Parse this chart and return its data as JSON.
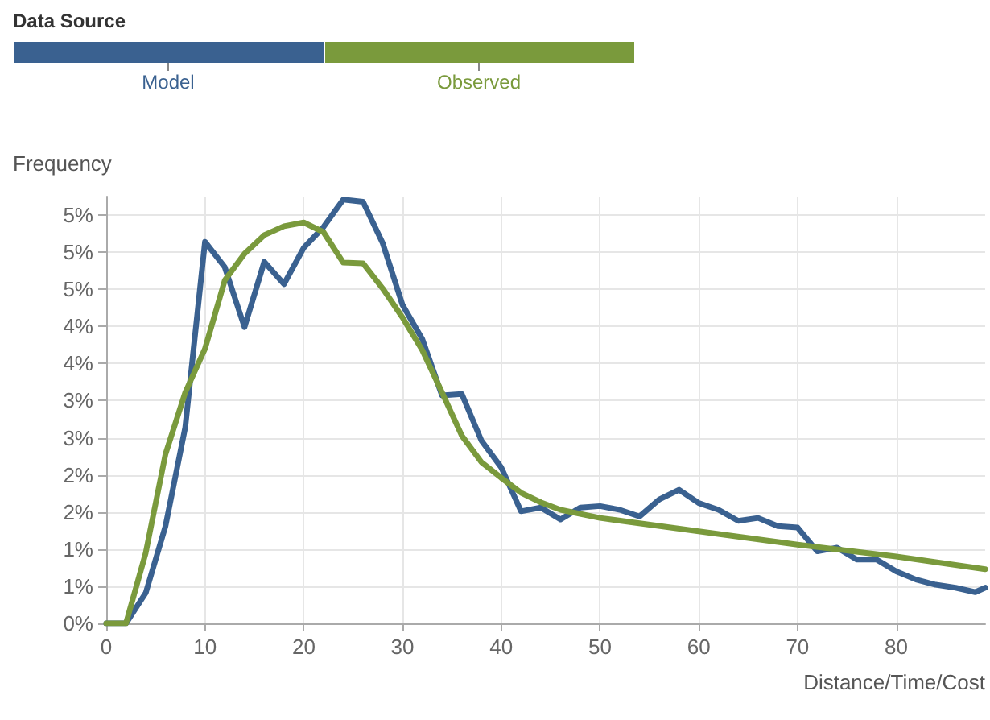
{
  "chart_data": {
    "type": "line",
    "legend_title": "Data Source",
    "xlabel": "Distance/Time/Cost",
    "ylabel": "Frequency",
    "xlim": [
      0,
      89
    ],
    "xticks": [
      0,
      10,
      20,
      30,
      40,
      50,
      60,
      70,
      80
    ],
    "ylim": [
      0,
      5.75
    ],
    "yticks": [
      {
        "value": 0,
        "label": "0%"
      },
      {
        "value": 0.5,
        "label": "1%"
      },
      {
        "value": 1,
        "label": "1%"
      },
      {
        "value": 1.5,
        "label": "2%"
      },
      {
        "value": 2,
        "label": "2%"
      },
      {
        "value": 2.5,
        "label": "3%"
      },
      {
        "value": 3,
        "label": "3%"
      },
      {
        "value": 3.5,
        "label": "4%"
      },
      {
        "value": 4,
        "label": "4%"
      },
      {
        "value": 4.5,
        "label": "5%"
      },
      {
        "value": 5,
        "label": "5%"
      },
      {
        "value": 5.5,
        "label": "5%"
      }
    ],
    "grid": true,
    "legend": "top left",
    "marker": "none",
    "line_style": "solid",
    "series": [
      {
        "name": "Model",
        "color": "#3a6190",
        "x": [
          0,
          2,
          4,
          6,
          8,
          10,
          12,
          14,
          16,
          18,
          20,
          22,
          24,
          26,
          28,
          30,
          32,
          34,
          36,
          38,
          40,
          42,
          44,
          46,
          48,
          50,
          52,
          54,
          56,
          58,
          60,
          62,
          64,
          66,
          68,
          70,
          72,
          74,
          76,
          78,
          80,
          82,
          84,
          86,
          88,
          89
        ],
        "values": [
          0,
          0,
          0.41,
          1.31,
          2.64,
          5.14,
          4.8,
          3.99,
          4.87,
          4.57,
          5.06,
          5.34,
          5.71,
          5.68,
          5.12,
          4.29,
          3.83,
          3.07,
          3.09,
          2.46,
          2.1,
          1.51,
          1.56,
          1.4,
          1.56,
          1.58,
          1.53,
          1.44,
          1.67,
          1.8,
          1.62,
          1.53,
          1.38,
          1.42,
          1.31,
          1.29,
          0.97,
          1.02,
          0.86,
          0.86,
          0.7,
          0.59,
          0.52,
          0.48,
          0.42,
          0.48
        ]
      },
      {
        "name": "Observed",
        "color": "#7a9a3c",
        "x": [
          0,
          2,
          4,
          6,
          8,
          10,
          12,
          14,
          16,
          18,
          20,
          22,
          24,
          26,
          28,
          30,
          32,
          34,
          36,
          38,
          40,
          42,
          44,
          46,
          50,
          60,
          70,
          80,
          89
        ],
        "values": [
          0,
          0,
          0.95,
          2.28,
          3.11,
          3.7,
          4.62,
          4.98,
          5.23,
          5.35,
          5.4,
          5.27,
          4.86,
          4.85,
          4.51,
          4.12,
          3.68,
          3.11,
          2.53,
          2.17,
          1.96,
          1.76,
          1.63,
          1.53,
          1.42,
          1.24,
          1.06,
          0.9,
          0.73
        ]
      }
    ]
  }
}
